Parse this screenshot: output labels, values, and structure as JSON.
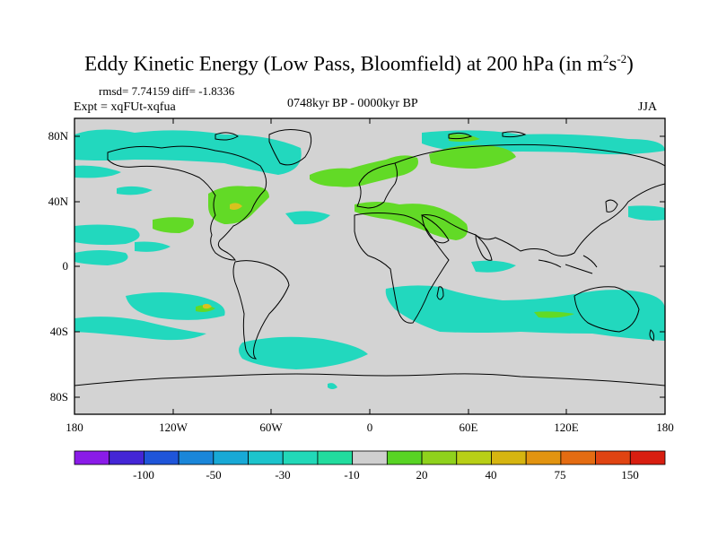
{
  "title": {
    "main": "Eddy Kinetic Energy (Low Pass, Bloomfield) at 200 hPa (in m",
    "sup1": "2",
    "mid": "s",
    "sup2": "-2",
    "end": ")"
  },
  "stats": "rmsd= 7.74159 diff= -1.8336",
  "expt": "Expt = xqFUt-xqfua",
  "period": "0748kyr BP - 0000kyr BP",
  "season": "JJA",
  "lat_labels": [
    "80N",
    "40N",
    "0",
    "40S",
    "80S"
  ],
  "lon_labels": [
    "180",
    "120W",
    "60W",
    "0",
    "60E",
    "120E",
    "180"
  ],
  "colorbar": {
    "labels": [
      "-100",
      "-50",
      "-30",
      "-10",
      "20",
      "40",
      "75",
      "150"
    ],
    "colors": [
      "#8a1be8",
      "#4426d6",
      "#1f55d9",
      "#1a86d9",
      "#18a9d6",
      "#1cc4cc",
      "#22d8b8",
      "#22dc9e",
      "#cfcfcf",
      "#58d424",
      "#8fd21c",
      "#b8cf16",
      "#d6b510",
      "#e29410",
      "#e46c12",
      "#e04412",
      "#d81e10"
    ]
  },
  "colors": {
    "land_bg": "#d3d3d3",
    "cyan": "#22d8be",
    "green": "#62da26",
    "yellow": "#d9c21e"
  }
}
